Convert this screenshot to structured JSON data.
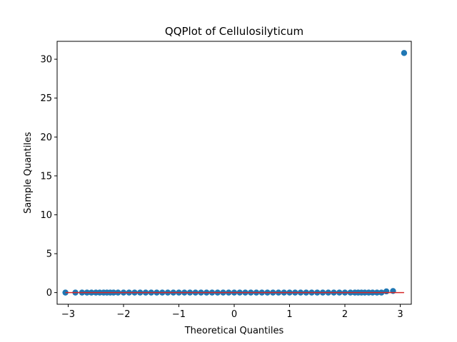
{
  "chart_data": {
    "type": "scatter",
    "title": "QQPlot of Cellulosilyticum",
    "xlabel": "Theoretical Quantiles",
    "ylabel": "Sample Quantiles",
    "xlim": [
      -3.2,
      3.2
    ],
    "ylim": [
      -1.5,
      32.3
    ],
    "x_ticks": [
      -3,
      -2,
      -1,
      0,
      1,
      2,
      3
    ],
    "x_tick_labels": [
      "−3",
      "−2",
      "−1",
      "0",
      "1",
      "2",
      "3"
    ],
    "y_ticks": [
      0,
      5,
      10,
      15,
      20,
      25,
      30
    ],
    "y_tick_labels": [
      "0",
      "5",
      "10",
      "15",
      "20",
      "25",
      "30"
    ],
    "grid": false,
    "colors": {
      "points": "#1f77b4",
      "reference_line": "#d62728"
    },
    "series": [
      {
        "kind": "points",
        "x": [
          -3.05,
          -2.87,
          -2.75,
          -2.66,
          -2.58,
          -2.5,
          -2.43,
          -2.36,
          -2.3,
          -2.24,
          -2.18,
          -2.1,
          -2.0,
          -1.9,
          -1.8,
          -1.7,
          -1.6,
          -1.5,
          -1.4,
          -1.3,
          -1.2,
          -1.1,
          -1.0,
          -0.9,
          -0.8,
          -0.7,
          -0.6,
          -0.5,
          -0.4,
          -0.3,
          -0.2,
          -0.1,
          0.0,
          0.1,
          0.2,
          0.3,
          0.4,
          0.5,
          0.6,
          0.7,
          0.8,
          0.9,
          1.0,
          1.1,
          1.2,
          1.3,
          1.4,
          1.5,
          1.6,
          1.7,
          1.8,
          1.9,
          2.0,
          2.1,
          2.18,
          2.24,
          2.3,
          2.36,
          2.43,
          2.5,
          2.58,
          2.66,
          2.75,
          2.87,
          3.07
        ],
        "y": [
          0.0,
          0.0,
          0.0,
          0.0,
          0.0,
          0.0,
          0.0,
          0.0,
          0.0,
          0.0,
          0.0,
          0.0,
          0.0,
          0.0,
          0.0,
          0.0,
          0.0,
          0.0,
          0.0,
          0.0,
          0.0,
          0.0,
          0.0,
          0.0,
          0.0,
          0.0,
          0.0,
          0.0,
          0.0,
          0.0,
          0.0,
          0.0,
          0.0,
          0.0,
          0.0,
          0.0,
          0.0,
          0.0,
          0.0,
          0.0,
          0.0,
          0.0,
          0.0,
          0.0,
          0.0,
          0.0,
          0.0,
          0.0,
          0.0,
          0.0,
          0.0,
          0.0,
          0.0,
          0.0,
          0.0,
          0.0,
          0.0,
          0.0,
          0.0,
          0.0,
          0.0,
          0.0,
          0.15,
          0.2,
          30.8
        ]
      },
      {
        "kind": "line",
        "x": [
          -3.05,
          3.07
        ],
        "y": [
          0.0,
          0.0
        ]
      }
    ]
  }
}
